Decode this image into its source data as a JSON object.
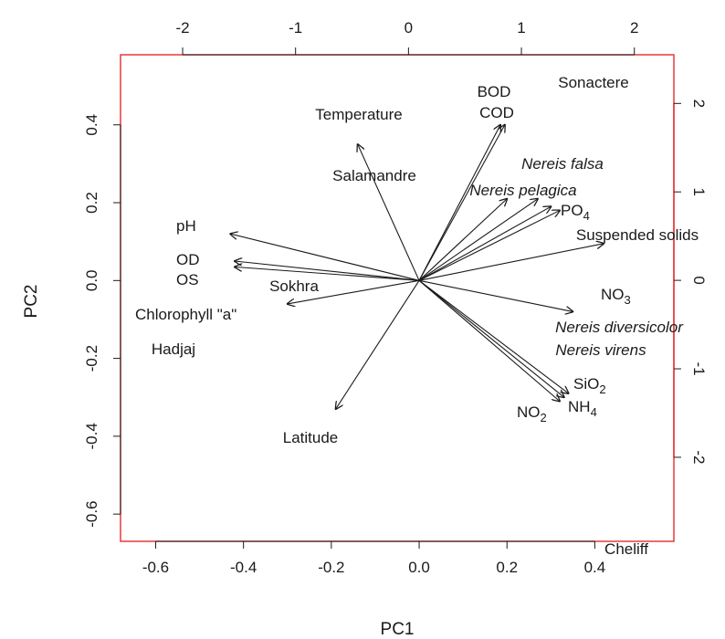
{
  "chart_data": {
    "type": "biplot",
    "xlabel": "PC1",
    "ylabel": "PC2",
    "xlim": [
      -0.68,
      0.58
    ],
    "ylim": [
      -0.67,
      0.58
    ],
    "x_ticks": [
      -0.6,
      -0.4,
      -0.2,
      0.0,
      0.2,
      0.4
    ],
    "x_tick_labels": [
      "-0.6",
      "-0.4",
      "-0.2",
      "0.0",
      "0.2",
      "0.4"
    ],
    "y_ticks": [
      -0.6,
      -0.4,
      -0.2,
      0.0,
      0.2,
      0.4
    ],
    "y_tick_labels": [
      "-0.6",
      "-0.4",
      "-0.2",
      "0.0",
      "0.2",
      "0.4"
    ],
    "top_axis": {
      "lim": [
        -2.55,
        2.35
      ],
      "ticks": [
        -2,
        -1,
        0,
        1,
        2
      ],
      "tick_labels": [
        "-2",
        "-1",
        "0",
        "1",
        "2"
      ]
    },
    "right_axis": {
      "lim": [
        -2.95,
        2.55
      ],
      "ticks": [
        -2,
        -1,
        0,
        1,
        2
      ],
      "tick_labels": [
        "-2",
        "-1",
        "0",
        "1",
        "2"
      ],
      "color": "#e8383b"
    },
    "grid": false,
    "frame_color": "#e8383b",
    "arrow_color": "#1a1a1a",
    "observation_labels": [
      {
        "label": "Sonactere",
        "x": 0.46,
        "y": 0.52
      },
      {
        "label": "Salamandre",
        "x": -0.16,
        "y": 0.28
      },
      {
        "label": "Sokhra",
        "x": -0.29,
        "y": -0.02
      },
      {
        "label": "Hadjaj",
        "x": -0.59,
        "y": -0.18
      },
      {
        "label": "Latitude",
        "x": -0.26,
        "y": -0.4
      },
      {
        "label": "Cheliff",
        "x": 0.49,
        "y": -0.7
      }
    ],
    "species_labels": [
      {
        "label": "Nereis falsa",
        "x": 0.37,
        "y": 0.32,
        "color": "#1fa3e0"
      },
      {
        "label": "Nereis pelagica",
        "x": 0.24,
        "y": 0.245,
        "color": "#f2b01e"
      },
      {
        "label": "Nereis diversicolor",
        "x": 0.44,
        "y": -0.13,
        "color": "#e8383b"
      },
      {
        "label": "Nereis virens",
        "x": 0.38,
        "y": -0.18,
        "color": "#3aaa45"
      }
    ],
    "variable_arrows": [
      {
        "label": "Temperature",
        "x": -0.14,
        "y": 0.35
      },
      {
        "label": "BOD",
        "x": 0.185,
        "y": 0.4
      },
      {
        "label": "COD",
        "x": 0.195,
        "y": 0.4
      },
      {
        "label": "PO",
        "sub": "4",
        "x": 0.32,
        "y": 0.18
      },
      {
        "label": "Suspended solids",
        "x": 0.42,
        "y": 0.095
      },
      {
        "label": "NO",
        "sub": "3",
        "x": 0.35,
        "y": -0.08
      },
      {
        "label": "SiO",
        "sub": "2",
        "x": 0.34,
        "y": -0.29
      },
      {
        "label": "NH",
        "sub": "4",
        "x": 0.33,
        "y": -0.3
      },
      {
        "label": "NO",
        "sub": "2",
        "x": 0.32,
        "y": -0.31
      },
      {
        "label": "pH",
        "x": -0.43,
        "y": 0.12
      },
      {
        "label": "OD",
        "x": -0.42,
        "y": 0.05
      },
      {
        "label": "OS",
        "x": -0.42,
        "y": 0.035
      },
      {
        "label": "Chlorophyll \"a\"",
        "x": -0.3,
        "y": -0.06
      },
      {
        "label": "Latitude",
        "x": -0.19,
        "y": -0.33
      }
    ],
    "unlabeled_arrows": [
      {
        "x": 0.2,
        "y": 0.21
      },
      {
        "x": 0.27,
        "y": 0.21
      },
      {
        "x": 0.3,
        "y": 0.19
      }
    ]
  }
}
